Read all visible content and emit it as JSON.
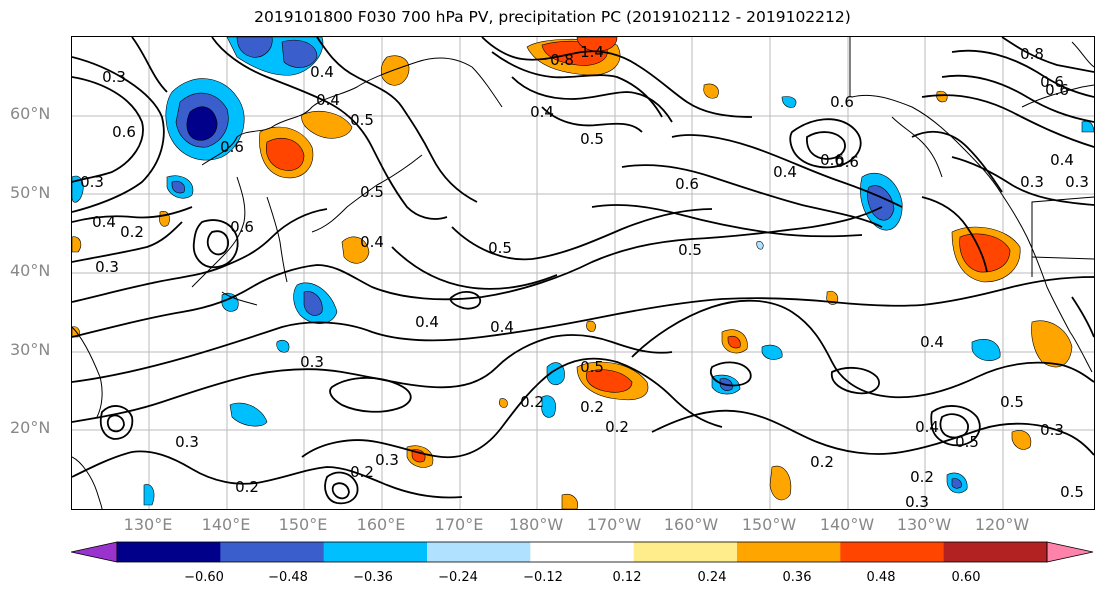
{
  "title": "2019101800 F030 700 hPa PV, precipitation PC (2019102112 - 2019102212)",
  "lat_labels": [
    "60°N",
    "50°N",
    "40°N",
    "30°N",
    "20°N"
  ],
  "lon_labels": [
    "130°E",
    "140°E",
    "150°E",
    "160°E",
    "170°E",
    "180°W",
    "170°W",
    "160°W",
    "150°W",
    "140°W",
    "130°W",
    "120°W"
  ],
  "colorbar": {
    "ticks": [
      "−0.60",
      "−0.48",
      "−0.36",
      "−0.24",
      "−0.12",
      "0.12",
      "0.24",
      "0.36",
      "0.48",
      "0.60"
    ],
    "colors": [
      "#9a32cd",
      "#00008b",
      "#3a5fcd",
      "#00bfff",
      "#b0e2ff",
      "#ffffff",
      "#ffec8b",
      "#ffa500",
      "#ff4500",
      "#b22222",
      "#ff82ab"
    ]
  },
  "contour_labels": [
    {
      "text": "0.3"
    },
    {
      "text": "0.6"
    },
    {
      "text": "0.4"
    },
    {
      "text": "1.4"
    },
    {
      "text": "0.8"
    },
    {
      "text": "0.4"
    },
    {
      "text": "0.5"
    },
    {
      "text": "0.5"
    },
    {
      "text": "0.4"
    },
    {
      "text": "0.6"
    },
    {
      "text": "0.6"
    },
    {
      "text": "0.6"
    },
    {
      "text": "0.4"
    },
    {
      "text": "0.6"
    },
    {
      "text": "0.4"
    },
    {
      "text": "0.3"
    },
    {
      "text": "0.8"
    },
    {
      "text": "0.6"
    },
    {
      "text": "0.3"
    },
    {
      "text": "0.4"
    },
    {
      "text": "0.6"
    },
    {
      "text": "0.6"
    },
    {
      "text": "0.4"
    },
    {
      "text": "0.5"
    },
    {
      "text": "0.5"
    },
    {
      "text": "0.6"
    },
    {
      "text": "0.5"
    },
    {
      "text": "0.4"
    },
    {
      "text": "0.3"
    },
    {
      "text": "0.3"
    },
    {
      "text": "0.4"
    },
    {
      "text": "0.2"
    },
    {
      "text": "0.4"
    },
    {
      "text": "0.3"
    },
    {
      "text": "0.2"
    },
    {
      "text": "0.5"
    },
    {
      "text": "0.2"
    },
    {
      "text": "0.2"
    },
    {
      "text": "0.3"
    },
    {
      "text": "0.3"
    },
    {
      "text": "0.2"
    },
    {
      "text": "0.2"
    },
    {
      "text": "0.5"
    },
    {
      "text": "0.4"
    },
    {
      "text": "0.5"
    },
    {
      "text": "0.3"
    },
    {
      "text": "0.2"
    },
    {
      "text": "0.2"
    },
    {
      "text": "0.3"
    },
    {
      "text": "0.5"
    }
  ]
}
